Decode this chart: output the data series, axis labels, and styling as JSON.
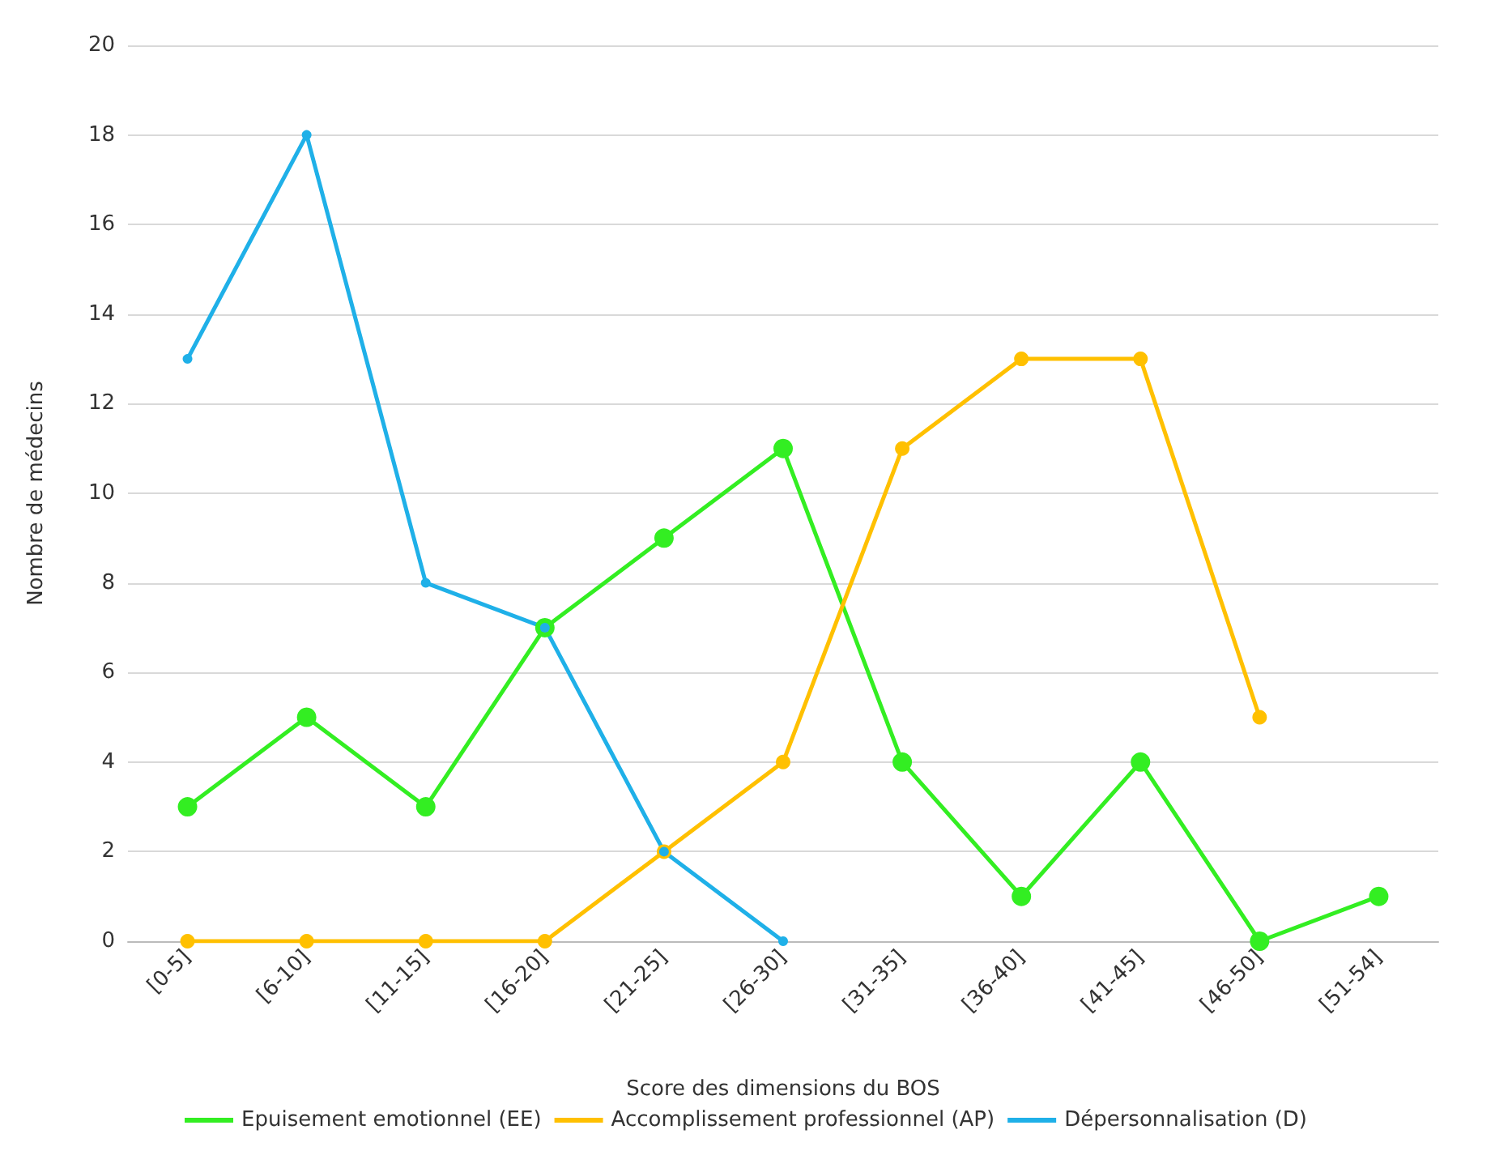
{
  "chart_data": {
    "type": "line",
    "xlabel": "Score des dimensions du BOS",
    "ylabel": "Nombre de médecins",
    "categories": [
      "[0-5]",
      "[6-10]",
      "[11-15]",
      "[16-20]",
      "[21-25]",
      "[26-30]",
      "[31-35]",
      "[36-40]",
      "[41-45]",
      "[46-50]",
      "[51-54]"
    ],
    "series": [
      {
        "name": "Epuisement emotionnel (EE)",
        "color": "#33ee22",
        "values": [
          3,
          5,
          3,
          7,
          9,
          11,
          4,
          1,
          4,
          0,
          1
        ]
      },
      {
        "name": "Accomplissement professionnel (AP)",
        "color": "#ffc000",
        "values": [
          0,
          0,
          0,
          0,
          2,
          4,
          11,
          13,
          13,
          5,
          null
        ]
      },
      {
        "name": "Dépersonnalisation (D)",
        "color": "#1fb0e8",
        "values": [
          13,
          18,
          8,
          7,
          2,
          0,
          null,
          null,
          null,
          null,
          null
        ]
      }
    ],
    "ylim": [
      0,
      20
    ],
    "yticks": [
      0,
      2,
      4,
      6,
      8,
      10,
      12,
      14,
      16,
      18,
      20
    ],
    "grid": "y",
    "legend": "bottom",
    "marker": "circle",
    "line_style": "solid"
  }
}
